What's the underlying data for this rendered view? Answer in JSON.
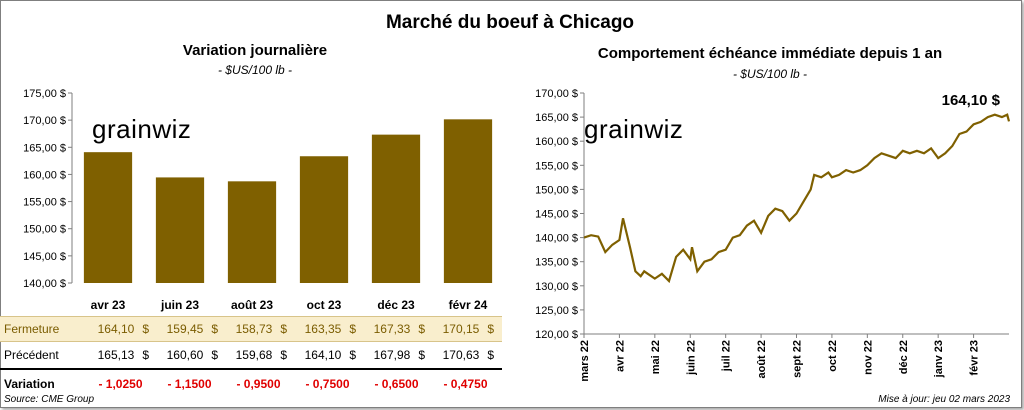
{
  "main_title": "Marché du boeuf à Chicago",
  "left_chart": {
    "title": "Variation  journalière",
    "subtitle": "- $US/100 lb -"
  },
  "right_chart": {
    "title": "Comportement  échéance immédiate depuis 1 an",
    "subtitle": "- $US/100 lb -",
    "last_value_label": "164,10 $"
  },
  "logo_text": "grainwiz",
  "table": {
    "rows": [
      {
        "label": "Fermeture",
        "values": [
          "164,10",
          "159,45",
          "158,73",
          "163,35",
          "167,33",
          "170,15"
        ],
        "unit": "$"
      },
      {
        "label": "Précédent",
        "values": [
          "165,13",
          "160,60",
          "159,68",
          "164,10",
          "167,98",
          "170,63"
        ],
        "unit": "$"
      },
      {
        "label": "Variation",
        "values": [
          "- 1,0250",
          "- 1,1500",
          "- 0,9500",
          "- 0,7500",
          "- 0,6500",
          "- 0,4750"
        ],
        "unit": ""
      }
    ]
  },
  "footer": {
    "source": "Source: CME Group",
    "update": "Mise à jour: jeu 02 mars 2023"
  },
  "colors": {
    "bar": "#7f6000",
    "line": "#7f6000",
    "fermeture_bg": "#f9eecd",
    "negative": "#e00000"
  },
  "chart_data": [
    {
      "type": "bar",
      "categories": [
        "avr 23",
        "juin 23",
        "août 23",
        "oct 23",
        "déc 23",
        "févr 24"
      ],
      "values": [
        164.1,
        159.45,
        158.73,
        163.35,
        167.33,
        170.15
      ],
      "ylim": [
        140,
        175
      ],
      "yticks": [
        140,
        145,
        150,
        155,
        160,
        165,
        170,
        175
      ],
      "ytick_labels": [
        "140,00 $",
        "145,00 $",
        "150,00 $",
        "155,00 $",
        "160,00 $",
        "165,00 $",
        "170,00 $",
        "175,00 $"
      ],
      "grid": false
    },
    {
      "type": "line",
      "x_tick_labels": [
        "mars 22",
        "avr 22",
        "mai 22",
        "juin 22",
        "juil 22",
        "août 22",
        "sept 22",
        "oct 22",
        "nov 22",
        "déc 22",
        "janv 23",
        "févr 23"
      ],
      "ylim": [
        120,
        170
      ],
      "yticks": [
        120,
        125,
        130,
        135,
        140,
        145,
        150,
        155,
        160,
        165,
        170
      ],
      "ytick_labels": [
        "120,00 $",
        "125,00 $",
        "130,00 $",
        "135,00 $",
        "140,00 $",
        "145,00 $",
        "150,00 $",
        "155,00 $",
        "160,00 $",
        "165,00 $",
        "170,00 $"
      ],
      "x_months_from_start": [
        0,
        0.2,
        0.4,
        0.6,
        0.8,
        1.0,
        1.1,
        1.3,
        1.45,
        1.6,
        1.7,
        1.8,
        2.0,
        2.2,
        2.4,
        2.6,
        2.8,
        3.0,
        3.05,
        3.2,
        3.4,
        3.6,
        3.8,
        4.0,
        4.2,
        4.4,
        4.6,
        4.8,
        5.0,
        5.2,
        5.4,
        5.6,
        5.8,
        6.0,
        6.2,
        6.4,
        6.5,
        6.7,
        6.9,
        7.0,
        7.2,
        7.4,
        7.6,
        7.8,
        8.0,
        8.2,
        8.4,
        8.6,
        8.8,
        9.0,
        9.2,
        9.4,
        9.6,
        9.8,
        10.0,
        10.2,
        10.4,
        10.6,
        10.8,
        11.0,
        11.2,
        11.4,
        11.6,
        11.8,
        11.95,
        12.0
      ],
      "values": [
        140.0,
        140.5,
        140.2,
        137.0,
        138.5,
        139.5,
        144.0,
        138.0,
        133.0,
        132.0,
        133.0,
        132.5,
        131.5,
        132.5,
        131.0,
        136.0,
        137.5,
        135.5,
        138.0,
        133.0,
        135.0,
        135.5,
        137.0,
        137.5,
        140.0,
        140.5,
        142.5,
        143.5,
        141.0,
        144.5,
        146.0,
        145.5,
        143.5,
        145.0,
        147.5,
        150.0,
        153.0,
        152.5,
        153.5,
        152.5,
        153.0,
        154.0,
        153.5,
        154.0,
        155.0,
        156.5,
        157.5,
        157.0,
        156.5,
        158.0,
        157.5,
        158.0,
        157.5,
        158.5,
        156.5,
        157.5,
        159.0,
        161.5,
        162.0,
        163.5,
        164.0,
        165.0,
        165.5,
        165.0,
        165.5,
        164.1
      ],
      "grid": false
    }
  ]
}
